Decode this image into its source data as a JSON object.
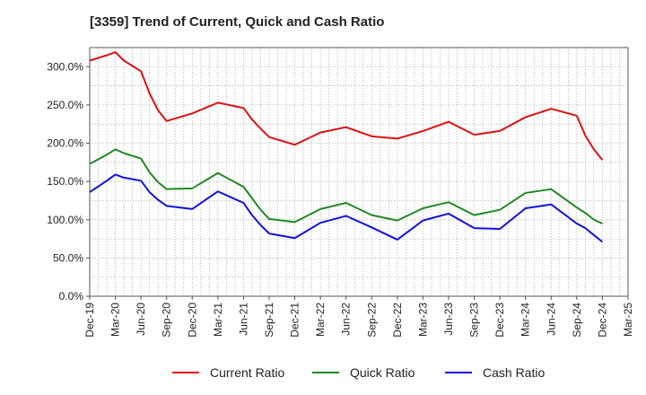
{
  "chart_data": {
    "type": "line",
    "title": "[3359]  Trend of Current, Quick and Cash Ratio",
    "xlabel": "",
    "ylabel": "",
    "ylim": [
      0,
      325
    ],
    "yticks": [
      0,
      50,
      100,
      150,
      200,
      250,
      300
    ],
    "ytick_labels": [
      "0.0%",
      "50.0%",
      "100.0%",
      "150.0%",
      "200.0%",
      "250.0%",
      "300.0%"
    ],
    "xtick_labels": [
      "Dec-19",
      "Mar-20",
      "Jun-20",
      "Sep-20",
      "Dec-20",
      "Mar-21",
      "Jun-21",
      "Sep-21",
      "Dec-21",
      "Mar-22",
      "Jun-22",
      "Sep-22",
      "Dec-22",
      "Mar-23",
      "Jun-23",
      "Sep-23",
      "Dec-23",
      "Mar-24",
      "Jun-24",
      "Sep-24",
      "Dec-24",
      "Mar-25"
    ],
    "x": [
      "Dec-19",
      "Feb-20",
      "Mar-20",
      "Apr-20",
      "Jun-20",
      "Jul-20",
      "Aug-20",
      "Sep-20",
      "Dec-20",
      "Mar-21",
      "Jun-21",
      "Jul-21",
      "Aug-21",
      "Sep-21",
      "Dec-21",
      "Mar-22",
      "Jun-22",
      "Sep-22",
      "Dec-22",
      "Mar-23",
      "Jun-23",
      "Sep-23",
      "Dec-23",
      "Mar-24",
      "Jun-24",
      "Sep-24",
      "Oct-24",
      "Nov-24",
      "Dec-24"
    ],
    "grid": true,
    "legend": "bottom",
    "series": [
      {
        "name": "Current Ratio",
        "color": "#dd1111",
        "values": [
          308,
          315,
          319,
          308,
          294,
          265,
          243,
          229,
          239,
          253,
          246,
          231,
          219,
          208,
          198,
          214,
          221,
          209,
          206,
          216,
          228,
          211,
          216,
          234,
          245,
          236,
          210,
          192,
          178
        ]
      },
      {
        "name": "Quick Ratio",
        "color": "#228822",
        "values": [
          173,
          185,
          192,
          187,
          180,
          162,
          149,
          140,
          141,
          161,
          143,
          128,
          113,
          101,
          97,
          114,
          122,
          106,
          99,
          115,
          123,
          106,
          113,
          135,
          140,
          116,
          109,
          100,
          95
        ]
      },
      {
        "name": "Cash Ratio",
        "color": "#1111dd",
        "values": [
          136,
          151,
          159,
          155,
          151,
          136,
          126,
          118,
          114,
          137,
          122,
          106,
          93,
          82,
          76,
          96,
          105,
          90,
          74,
          99,
          108,
          89,
          88,
          115,
          120,
          95,
          89,
          80,
          71
        ]
      }
    ]
  }
}
